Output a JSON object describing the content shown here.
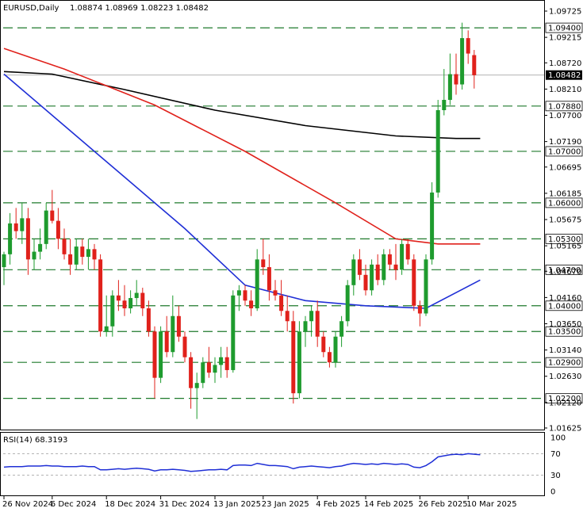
{
  "header": {
    "symbol_label": "EURUSD,Daily",
    "ohlc_label": "1.08874 1.08969 1.08223 1.08482"
  },
  "rsi_header": {
    "label": "RSI(14) 68.3193"
  },
  "chart_data": [
    {
      "type": "candlestick",
      "symbol": "EURUSD",
      "timeframe": "Daily",
      "ylim": [
        1.01625,
        1.09725
      ],
      "y_ticks": [
        "1.09725",
        "1.09215",
        "1.08720",
        "1.08210",
        "1.07700",
        "1.07190",
        "1.06695",
        "1.06185",
        "1.05675",
        "1.05165",
        "1.04670",
        "1.04160",
        "1.03650",
        "1.03140",
        "1.02630",
        "1.02120",
        "1.01625"
      ],
      "x_ticks": [
        {
          "label": "26 Nov 2024",
          "index": 0
        },
        {
          "label": "6 Dec 2024",
          "index": 8
        },
        {
          "label": "18 Dec 2024",
          "index": 17
        },
        {
          "label": "31 Dec 2024",
          "index": 26
        },
        {
          "label": "13 Jan 2025",
          "index": 35
        },
        {
          "label": "23 Jan 2025",
          "index": 43
        },
        {
          "label": "4 Feb 2025",
          "index": 52
        },
        {
          "label": "14 Feb 2025",
          "index": 60
        },
        {
          "label": "26 Feb 2025",
          "index": 69
        },
        {
          "label": "10 Mar 2025",
          "index": 77
        }
      ],
      "levels": [
        {
          "label": "1.09400",
          "value": 1.094
        },
        {
          "label": "1.07880",
          "value": 1.0788
        },
        {
          "label": "1.07000",
          "value": 1.07
        },
        {
          "label": "1.06000",
          "value": 1.06
        },
        {
          "label": "1.05300",
          "value": 1.053
        },
        {
          "label": "1.04700",
          "value": 1.047
        },
        {
          "label": "1.04000",
          "value": 1.04
        },
        {
          "label": "1.03500",
          "value": 1.035
        },
        {
          "label": "1.02900",
          "value": 1.029
        },
        {
          "label": "1.02200",
          "value": 1.022
        }
      ],
      "current_price": {
        "label": "1.08482",
        "value": 1.08482
      },
      "candles": [
        {
          "o": 1.0475,
          "h": 1.0505,
          "l": 1.044,
          "c": 1.05
        },
        {
          "o": 1.05,
          "h": 1.058,
          "l": 1.048,
          "c": 1.056
        },
        {
          "o": 1.056,
          "h": 1.059,
          "l": 1.053,
          "c": 1.0545
        },
        {
          "o": 1.0545,
          "h": 1.06,
          "l": 1.052,
          "c": 1.057
        },
        {
          "o": 1.057,
          "h": 1.059,
          "l": 1.046,
          "c": 1.049
        },
        {
          "o": 1.049,
          "h": 1.053,
          "l": 1.047,
          "c": 1.0505
        },
        {
          "o": 1.0505,
          "h": 1.055,
          "l": 1.049,
          "c": 1.052
        },
        {
          "o": 1.052,
          "h": 1.06,
          "l": 1.051,
          "c": 1.0585
        },
        {
          "o": 1.0585,
          "h": 1.0625,
          "l": 1.056,
          "c": 1.0565
        },
        {
          "o": 1.0565,
          "h": 1.059,
          "l": 1.051,
          "c": 1.053
        },
        {
          "o": 1.053,
          "h": 1.055,
          "l": 1.049,
          "c": 1.05
        },
        {
          "o": 1.05,
          "h": 1.053,
          "l": 1.046,
          "c": 1.048
        },
        {
          "o": 1.048,
          "h": 1.053,
          "l": 1.047,
          "c": 1.0515
        },
        {
          "o": 1.0515,
          "h": 1.053,
          "l": 1.048,
          "c": 1.0495
        },
        {
          "o": 1.0495,
          "h": 1.053,
          "l": 1.047,
          "c": 1.051
        },
        {
          "o": 1.051,
          "h": 1.052,
          "l": 1.047,
          "c": 1.049
        },
        {
          "o": 1.049,
          "h": 1.05,
          "l": 1.034,
          "c": 1.035
        },
        {
          "o": 1.035,
          "h": 1.042,
          "l": 1.034,
          "c": 1.036
        },
        {
          "o": 1.036,
          "h": 1.043,
          "l": 1.034,
          "c": 1.042
        },
        {
          "o": 1.042,
          "h": 1.045,
          "l": 1.039,
          "c": 1.041
        },
        {
          "o": 1.041,
          "h": 1.044,
          "l": 1.038,
          "c": 1.0395
        },
        {
          "o": 1.0395,
          "h": 1.043,
          "l": 1.0385,
          "c": 1.0415
        },
        {
          "o": 1.0415,
          "h": 1.045,
          "l": 1.04,
          "c": 1.0425
        },
        {
          "o": 1.0425,
          "h": 1.0435,
          "l": 1.038,
          "c": 1.0395
        },
        {
          "o": 1.0395,
          "h": 1.041,
          "l": 1.034,
          "c": 1.035
        },
        {
          "o": 1.035,
          "h": 1.036,
          "l": 1.022,
          "c": 1.026
        },
        {
          "o": 1.026,
          "h": 1.036,
          "l": 1.025,
          "c": 1.035
        },
        {
          "o": 1.035,
          "h": 1.038,
          "l": 1.03,
          "c": 1.031
        },
        {
          "o": 1.031,
          "h": 1.042,
          "l": 1.03,
          "c": 1.038
        },
        {
          "o": 1.038,
          "h": 1.04,
          "l": 1.033,
          "c": 1.034
        },
        {
          "o": 1.034,
          "h": 1.035,
          "l": 1.029,
          "c": 1.03
        },
        {
          "o": 1.03,
          "h": 1.031,
          "l": 1.02,
          "c": 1.024
        },
        {
          "o": 1.024,
          "h": 1.027,
          "l": 1.018,
          "c": 1.025
        },
        {
          "o": 1.025,
          "h": 1.03,
          "l": 1.024,
          "c": 1.029
        },
        {
          "o": 1.029,
          "h": 1.032,
          "l": 1.026,
          "c": 1.027
        },
        {
          "o": 1.027,
          "h": 1.03,
          "l": 1.025,
          "c": 1.0285
        },
        {
          "o": 1.0285,
          "h": 1.032,
          "l": 1.026,
          "c": 1.03
        },
        {
          "o": 1.03,
          "h": 1.032,
          "l": 1.026,
          "c": 1.0275
        },
        {
          "o": 1.0275,
          "h": 1.043,
          "l": 1.027,
          "c": 1.042
        },
        {
          "o": 1.042,
          "h": 1.044,
          "l": 1.039,
          "c": 1.043
        },
        {
          "o": 1.043,
          "h": 1.044,
          "l": 1.04,
          "c": 1.041
        },
        {
          "o": 1.041,
          "h": 1.043,
          "l": 1.038,
          "c": 1.0395
        },
        {
          "o": 1.0395,
          "h": 1.051,
          "l": 1.039,
          "c": 1.049
        },
        {
          "o": 1.049,
          "h": 1.053,
          "l": 1.046,
          "c": 1.0475
        },
        {
          "o": 1.0475,
          "h": 1.05,
          "l": 1.041,
          "c": 1.043
        },
        {
          "o": 1.043,
          "h": 1.045,
          "l": 1.041,
          "c": 1.042
        },
        {
          "o": 1.042,
          "h": 1.045,
          "l": 1.038,
          "c": 1.039
        },
        {
          "o": 1.039,
          "h": 1.042,
          "l": 1.035,
          "c": 1.037
        },
        {
          "o": 1.037,
          "h": 1.039,
          "l": 1.021,
          "c": 1.023
        },
        {
          "o": 1.023,
          "h": 1.037,
          "l": 1.022,
          "c": 1.035
        },
        {
          "o": 1.035,
          "h": 1.038,
          "l": 1.032,
          "c": 1.037
        },
        {
          "o": 1.037,
          "h": 1.04,
          "l": 1.034,
          "c": 1.039
        },
        {
          "o": 1.039,
          "h": 1.041,
          "l": 1.032,
          "c": 1.034
        },
        {
          "o": 1.034,
          "h": 1.035,
          "l": 1.03,
          "c": 1.031
        },
        {
          "o": 1.031,
          "h": 1.032,
          "l": 1.028,
          "c": 1.029
        },
        {
          "o": 1.029,
          "h": 1.035,
          "l": 1.028,
          "c": 1.034
        },
        {
          "o": 1.034,
          "h": 1.038,
          "l": 1.032,
          "c": 1.037
        },
        {
          "o": 1.037,
          "h": 1.045,
          "l": 1.036,
          "c": 1.044
        },
        {
          "o": 1.044,
          "h": 1.05,
          "l": 1.042,
          "c": 1.049
        },
        {
          "o": 1.049,
          "h": 1.051,
          "l": 1.045,
          "c": 1.046
        },
        {
          "o": 1.046,
          "h": 1.048,
          "l": 1.042,
          "c": 1.043
        },
        {
          "o": 1.043,
          "h": 1.049,
          "l": 1.042,
          "c": 1.048
        },
        {
          "o": 1.048,
          "h": 1.05,
          "l": 1.044,
          "c": 1.045
        },
        {
          "o": 1.045,
          "h": 1.051,
          "l": 1.044,
          "c": 1.05
        },
        {
          "o": 1.05,
          "h": 1.051,
          "l": 1.047,
          "c": 1.048
        },
        {
          "o": 1.048,
          "h": 1.052,
          "l": 1.045,
          "c": 1.047
        },
        {
          "o": 1.047,
          "h": 1.053,
          "l": 1.046,
          "c": 1.052
        },
        {
          "o": 1.052,
          "h": 1.053,
          "l": 1.048,
          "c": 1.049
        },
        {
          "o": 1.049,
          "h": 1.05,
          "l": 1.039,
          "c": 1.04
        },
        {
          "o": 1.04,
          "h": 1.041,
          "l": 1.036,
          "c": 1.0385
        },
        {
          "o": 1.0385,
          "h": 1.05,
          "l": 1.038,
          "c": 1.049
        },
        {
          "o": 1.049,
          "h": 1.064,
          "l": 1.048,
          "c": 1.062
        },
        {
          "o": 1.062,
          "h": 1.08,
          "l": 1.061,
          "c": 1.078
        },
        {
          "o": 1.078,
          "h": 1.086,
          "l": 1.077,
          "c": 1.08
        },
        {
          "o": 1.08,
          "h": 1.089,
          "l": 1.079,
          "c": 1.085
        },
        {
          "o": 1.085,
          "h": 1.089,
          "l": 1.081,
          "c": 1.083
        },
        {
          "o": 1.083,
          "h": 1.095,
          "l": 1.082,
          "c": 1.092
        },
        {
          "o": 1.092,
          "h": 1.0935,
          "l": 1.087,
          "c": 1.089
        },
        {
          "o": 1.0887,
          "h": 1.0897,
          "l": 1.0822,
          "c": 1.0848
        }
      ],
      "moving_averages": [
        {
          "color": "#000000",
          "points": [
            [
              0,
              1.0855
            ],
            [
              8,
              1.085
            ],
            [
              20,
              1.082
            ],
            [
              35,
              1.078
            ],
            [
              50,
              1.075
            ],
            [
              65,
              1.073
            ],
            [
              75,
              1.0725
            ],
            [
              79,
              1.0725
            ]
          ]
        },
        {
          "color": "#e0211b",
          "points": [
            [
              0,
              1.09
            ],
            [
              10,
              1.086
            ],
            [
              25,
              1.079
            ],
            [
              40,
              1.07
            ],
            [
              55,
              1.06
            ],
            [
              65,
              1.053
            ],
            [
              72,
              1.052
            ],
            [
              79,
              1.052
            ]
          ]
        },
        {
          "color": "#1f2fd6",
          "points": [
            [
              0,
              1.085
            ],
            [
              10,
              1.075
            ],
            [
              20,
              1.065
            ],
            [
              30,
              1.055
            ],
            [
              40,
              1.044
            ],
            [
              50,
              1.041
            ],
            [
              60,
              1.04
            ],
            [
              70,
              1.0395
            ],
            [
              79,
              1.045
            ]
          ]
        }
      ]
    },
    {
      "type": "line",
      "name": "RSI(14)",
      "ylim": [
        0,
        100
      ],
      "y_ticks": [
        "100",
        "70",
        "30",
        "0"
      ],
      "levels": [
        70,
        30
      ],
      "values": [
        45,
        46,
        46,
        46,
        47,
        47,
        47,
        48,
        47,
        47,
        46,
        46,
        46,
        47,
        46,
        46,
        40,
        40,
        41,
        42,
        41,
        42,
        43,
        42,
        41,
        38,
        40,
        40,
        41,
        40,
        39,
        37,
        38,
        39,
        40,
        40,
        41,
        40,
        48,
        49,
        49,
        48,
        52,
        50,
        48,
        48,
        47,
        46,
        42,
        45,
        46,
        47,
        46,
        45,
        44,
        46,
        47,
        50,
        52,
        51,
        50,
        51,
        50,
        52,
        51,
        50,
        51,
        50,
        45,
        44,
        48,
        55,
        64,
        66,
        68,
        69,
        68,
        70,
        69,
        68
      ]
    }
  ]
}
